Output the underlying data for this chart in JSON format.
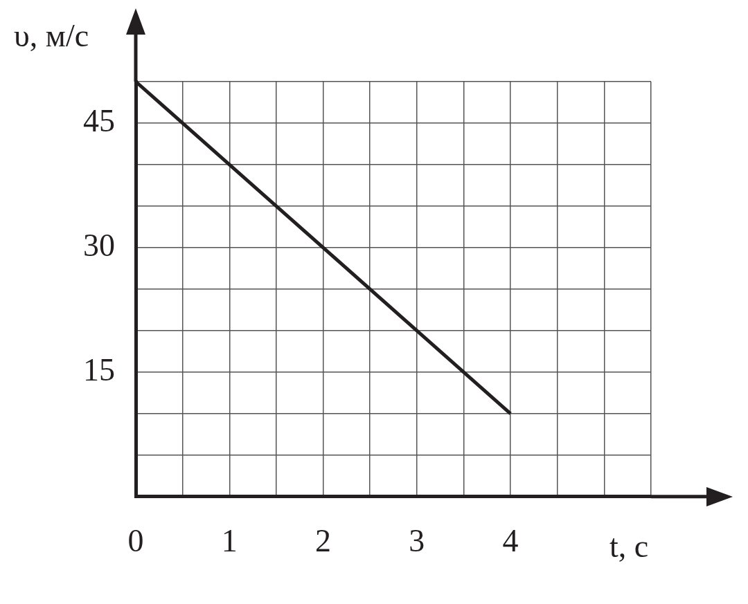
{
  "chart_data": {
    "type": "line",
    "xlabel": "t, с",
    "ylabel": "υ, м/с",
    "series": [
      {
        "color": "#231f20",
        "x": [
          0,
          4
        ],
        "values": [
          50,
          10
        ]
      }
    ],
    "xlim": [
      0,
      5.5
    ],
    "xticks": [
      {
        "value": 0,
        "label": "0"
      },
      {
        "value": 0.5,
        "label": null
      },
      1,
      {
        "value": 1.5,
        "label": null
      },
      2,
      {
        "value": 2.5,
        "label": null
      },
      3,
      {
        "value": 3.5,
        "label": null
      },
      4,
      {
        "value": 4.5,
        "label": null
      },
      {
        "value": 5,
        "label": null
      },
      {
        "value": 5.5,
        "label": null
      }
    ],
    "ylim": [
      0,
      50
    ],
    "yticks": [
      {
        "value": 0,
        "label": null
      },
      {
        "value": 5,
        "label": null
      },
      {
        "value": 10,
        "label": null
      },
      15,
      {
        "value": 20,
        "label": null
      },
      {
        "value": 25,
        "label": null
      },
      30,
      {
        "value": 35,
        "label": null
      },
      {
        "value": 40,
        "label": null
      },
      45,
      {
        "value": 50,
        "label": null
      }
    ],
    "grid": true,
    "legend": false,
    "marker": "none",
    "line_style": "solid"
  }
}
